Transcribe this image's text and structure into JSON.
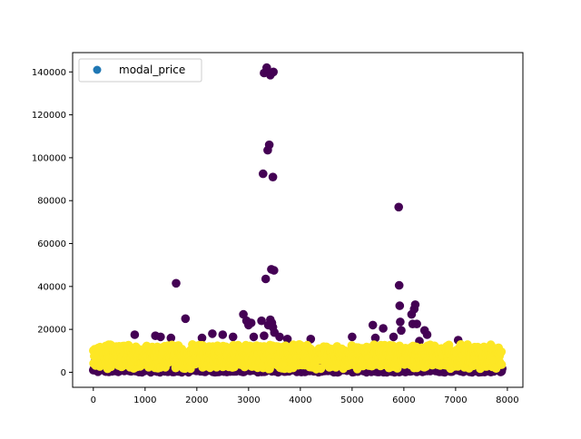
{
  "chart_data": {
    "type": "scatter",
    "title": "",
    "xlabel": "",
    "ylabel": "",
    "xlim": [
      -400,
      8300
    ],
    "ylim": [
      -7000,
      149000
    ],
    "x_ticks": [
      0,
      1000,
      2000,
      3000,
      4000,
      5000,
      6000,
      7000,
      8000
    ],
    "y_ticks": [
      0,
      20000,
      40000,
      60000,
      80000,
      100000,
      120000,
      140000
    ],
    "x_tick_labels": [
      "0",
      "1000",
      "2000",
      "3000",
      "4000",
      "5000",
      "6000",
      "7000",
      "8000"
    ],
    "y_tick_labels": [
      "0",
      "20000",
      "40000",
      "60000",
      "80000",
      "100000",
      "120000",
      "140000"
    ],
    "grid": false,
    "legend": {
      "position": "top-left",
      "entries": [
        "modal_price"
      ],
      "marker_color": "#1f77b4"
    },
    "colors": {
      "class_0": "#440154",
      "class_1": "#fde725"
    },
    "series": [
      {
        "name": "modal_price",
        "outliers_class0": [
          {
            "x": 1600,
            "y": 41500
          },
          {
            "x": 1780,
            "y": 25000
          },
          {
            "x": 800,
            "y": 17500
          },
          {
            "x": 1200,
            "y": 17000
          },
          {
            "x": 1300,
            "y": 16500
          },
          {
            "x": 1500,
            "y": 16000
          },
          {
            "x": 2100,
            "y": 16000
          },
          {
            "x": 2300,
            "y": 18000
          },
          {
            "x": 2500,
            "y": 17500
          },
          {
            "x": 2700,
            "y": 16500
          },
          {
            "x": 2900,
            "y": 27000
          },
          {
            "x": 2960,
            "y": 24000
          },
          {
            "x": 3000,
            "y": 22000
          },
          {
            "x": 3050,
            "y": 23000
          },
          {
            "x": 3100,
            "y": 16500
          },
          {
            "x": 3250,
            "y": 24000
          },
          {
            "x": 3280,
            "y": 92500
          },
          {
            "x": 3300,
            "y": 139500
          },
          {
            "x": 3330,
            "y": 43500
          },
          {
            "x": 3350,
            "y": 142000
          },
          {
            "x": 3370,
            "y": 103500
          },
          {
            "x": 3400,
            "y": 106000
          },
          {
            "x": 3420,
            "y": 138500
          },
          {
            "x": 3440,
            "y": 48000
          },
          {
            "x": 3470,
            "y": 91000
          },
          {
            "x": 3480,
            "y": 140000
          },
          {
            "x": 3490,
            "y": 47500
          },
          {
            "x": 3300,
            "y": 17000
          },
          {
            "x": 3380,
            "y": 22000
          },
          {
            "x": 3420,
            "y": 24500
          },
          {
            "x": 3450,
            "y": 23000
          },
          {
            "x": 3470,
            "y": 21000
          },
          {
            "x": 3500,
            "y": 18500
          },
          {
            "x": 3600,
            "y": 16500
          },
          {
            "x": 3750,
            "y": 15500
          },
          {
            "x": 4200,
            "y": 15500
          },
          {
            "x": 5000,
            "y": 16500
          },
          {
            "x": 5400,
            "y": 22000
          },
          {
            "x": 5450,
            "y": 16000
          },
          {
            "x": 5600,
            "y": 20500
          },
          {
            "x": 5800,
            "y": 16500
          },
          {
            "x": 5900,
            "y": 77000
          },
          {
            "x": 5910,
            "y": 40500
          },
          {
            "x": 5920,
            "y": 31000
          },
          {
            "x": 5930,
            "y": 23500
          },
          {
            "x": 5950,
            "y": 19500
          },
          {
            "x": 6150,
            "y": 27000
          },
          {
            "x": 6200,
            "y": 29500
          },
          {
            "x": 6220,
            "y": 31500
          },
          {
            "x": 6170,
            "y": 22500
          },
          {
            "x": 6250,
            "y": 22500
          },
          {
            "x": 6300,
            "y": 14500
          },
          {
            "x": 6400,
            "y": 19500
          },
          {
            "x": 6450,
            "y": 17500
          },
          {
            "x": 7050,
            "y": 15000
          }
        ],
        "dense_band": {
          "x_range": [
            0,
            7900
          ],
          "class0_y_range": [
            0,
            12000
          ],
          "class1_y_range": [
            0,
            14500
          ]
        }
      }
    ]
  }
}
